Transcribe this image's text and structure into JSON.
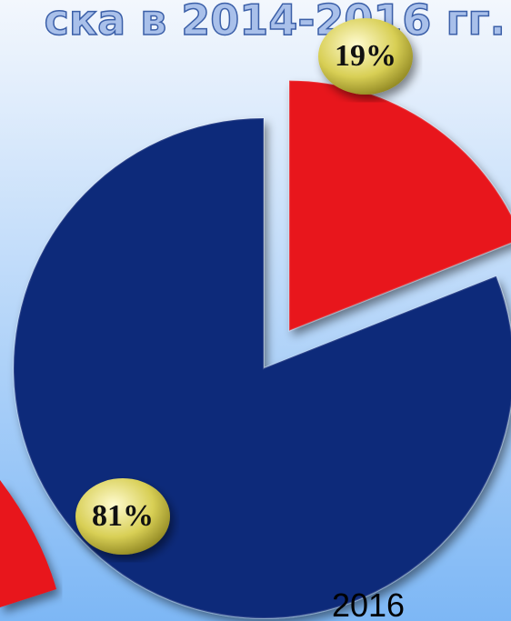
{
  "chart_data": {
    "type": "pie",
    "title": "ска в 2014-2016 гг.",
    "xlabel": "2016",
    "values": [
      19,
      81
    ],
    "value_labels": [
      "19%",
      "81%"
    ],
    "colors": [
      "#e8141a",
      "#10297a"
    ]
  }
}
